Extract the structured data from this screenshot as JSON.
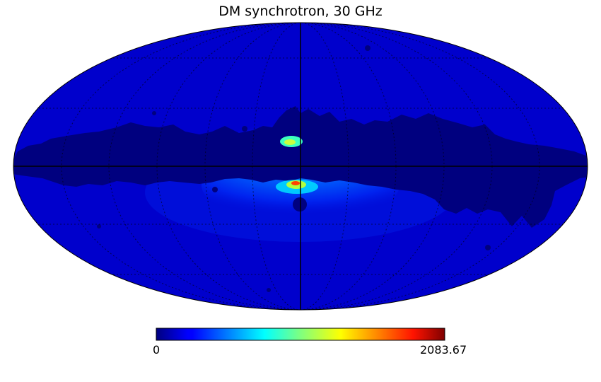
{
  "title": "DM synchrotron, 30 GHz",
  "map": {
    "projection": "mollweide",
    "graticule": true,
    "colormap": "jet",
    "masked_color": "#00007f"
  },
  "colorbar": {
    "min_label": "0",
    "max_label": "2083.67",
    "min": 0,
    "max": 2083.67
  }
}
